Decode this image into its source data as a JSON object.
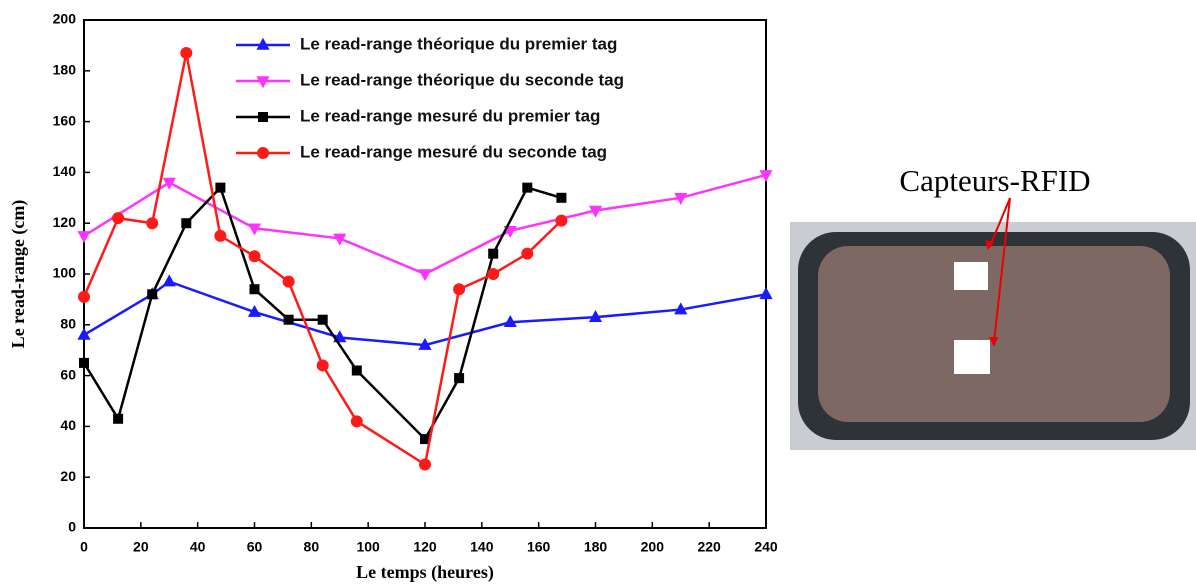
{
  "chart_data": {
    "type": "line",
    "xlabel": "Le temps (heures)",
    "ylabel": "Le read-range (cm)",
    "xlim": [
      0,
      240
    ],
    "xticks": [
      0,
      20,
      40,
      60,
      80,
      100,
      120,
      140,
      160,
      180,
      200,
      220,
      240
    ],
    "ylim": [
      0,
      200
    ],
    "yticks": [
      0,
      20,
      40,
      60,
      80,
      100,
      120,
      140,
      160,
      180,
      200
    ],
    "legend": "upper right",
    "annotation": "Capteurs-RFID",
    "series": [
      {
        "name": "Le read-range théorique du premier tag",
        "color": "#1a1aff",
        "marker": "triangle-up",
        "x": [
          0,
          24,
          30,
          60,
          90,
          120,
          150,
          180,
          210,
          240
        ],
        "values": [
          76,
          92,
          97,
          85,
          75,
          72,
          81,
          83,
          86,
          92
        ]
      },
      {
        "name": "Le read-range théorique du seconde tag",
        "color": "#ff33ff",
        "marker": "triangle-down",
        "x": [
          0,
          30,
          60,
          90,
          120,
          150,
          180,
          210,
          240
        ],
        "values": [
          115,
          136,
          118,
          114,
          100,
          117,
          125,
          130,
          139
        ]
      },
      {
        "name": "Le read-range mesuré du premier tag",
        "color": "#000000",
        "marker": "square",
        "x": [
          0,
          12,
          24,
          36,
          48,
          60,
          72,
          84,
          96,
          120,
          132,
          144,
          156,
          168
        ],
        "values": [
          65,
          43,
          92,
          120,
          134,
          94,
          82,
          82,
          62,
          35,
          59,
          108,
          134,
          130
        ]
      },
      {
        "name": "Le read-range mesuré du seconde tag",
        "color": "#ff1a1a",
        "marker": "circle",
        "x": [
          0,
          12,
          24,
          36,
          48,
          60,
          72,
          84,
          96,
          120,
          132,
          144,
          156,
          168
        ],
        "values": [
          91,
          122,
          120,
          187,
          115,
          107,
          97,
          64,
          42,
          25,
          94,
          100,
          108,
          121
        ]
      }
    ]
  }
}
